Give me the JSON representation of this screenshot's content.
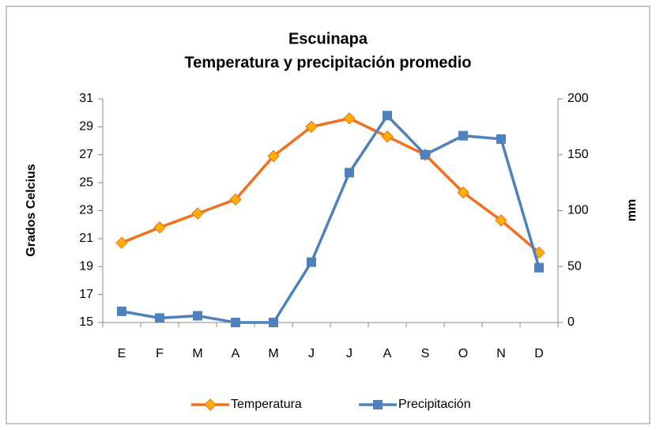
{
  "chart_data": {
    "type": "line",
    "title": [
      "Escuinapa",
      "Temperatura y precipitación promedio"
    ],
    "ylabel": "Grados Celcius",
    "y2label": "mm",
    "categories": [
      "E",
      "F",
      "M",
      "A",
      "M",
      "J",
      "J",
      "A",
      "S",
      "O",
      "N",
      "D"
    ],
    "series": [
      {
        "name": "Temperatura",
        "color": "#f07020",
        "marker": "diamond",
        "values": [
          20.7,
          21.8,
          22.8,
          23.8,
          26.9,
          29.0,
          29.6,
          28.3,
          27.0,
          24.3,
          22.3,
          20.0
        ]
      },
      {
        "name": "Precipitación",
        "color": "#4f81bd",
        "marker": "square",
        "axis": "y2",
        "values": [
          10,
          4,
          6,
          0,
          0,
          54,
          134,
          185,
          150,
          167,
          164,
          49
        ]
      }
    ],
    "ylim": [
      15,
      31
    ],
    "yticks": [
      15,
      17,
      19,
      21,
      23,
      25,
      27,
      29,
      31
    ],
    "y2lim": [
      0,
      200
    ],
    "y2ticks": [
      0,
      50,
      100,
      150,
      200
    ],
    "grid": false,
    "legend": "bottom"
  }
}
